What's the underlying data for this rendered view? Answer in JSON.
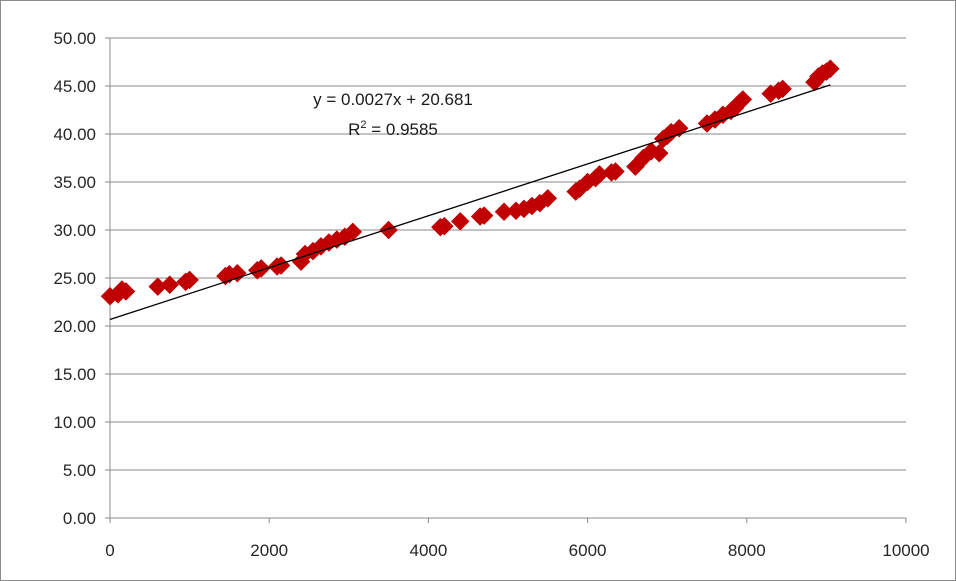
{
  "chart_data": {
    "type": "scatter",
    "title": "",
    "xlabel": "",
    "ylabel": "",
    "xlim": [
      0,
      10000
    ],
    "ylim": [
      0,
      50
    ],
    "x_ticks": [
      0,
      2000,
      4000,
      6000,
      8000,
      10000
    ],
    "x_tick_labels": [
      "0",
      "2000",
      "4000",
      "6000",
      "8000",
      "10000"
    ],
    "y_ticks": [
      0,
      5,
      10,
      15,
      20,
      25,
      30,
      35,
      40,
      45,
      50
    ],
    "y_tick_labels": [
      "0.00",
      "5.00",
      "10.00",
      "15.00",
      "20.00",
      "25.00",
      "30.00",
      "35.00",
      "40.00",
      "45.00",
      "50.00"
    ],
    "grid": "horizontal",
    "legend": "none",
    "marker": "diamond",
    "marker_color": "#c00000",
    "trendline_color": "#000000",
    "grid_color": "#888888",
    "series": [
      {
        "points": [
          [
            0,
            23.1
          ],
          [
            100,
            23.3
          ],
          [
            150,
            23.8
          ],
          [
            200,
            23.6
          ],
          [
            600,
            24.1
          ],
          [
            750,
            24.3
          ],
          [
            950,
            24.6
          ],
          [
            1000,
            24.8
          ],
          [
            1450,
            25.2
          ],
          [
            1500,
            25.4
          ],
          [
            1600,
            25.5
          ],
          [
            1850,
            25.8
          ],
          [
            1900,
            26.0
          ],
          [
            2100,
            26.2
          ],
          [
            2150,
            26.3
          ],
          [
            2400,
            26.7
          ],
          [
            2450,
            27.5
          ],
          [
            2550,
            27.8
          ],
          [
            2650,
            28.3
          ],
          [
            2750,
            28.7
          ],
          [
            2850,
            29.0
          ],
          [
            2950,
            29.3
          ],
          [
            3050,
            29.8
          ],
          [
            3500,
            30.0
          ],
          [
            4150,
            30.3
          ],
          [
            4200,
            30.4
          ],
          [
            4400,
            30.9
          ],
          [
            4650,
            31.4
          ],
          [
            4700,
            31.5
          ],
          [
            4950,
            31.9
          ],
          [
            5100,
            32.0
          ],
          [
            5200,
            32.2
          ],
          [
            5300,
            32.5
          ],
          [
            5400,
            32.8
          ],
          [
            5500,
            33.3
          ],
          [
            5850,
            34.0
          ],
          [
            5900,
            34.3
          ],
          [
            6000,
            35.0
          ],
          [
            6100,
            35.4
          ],
          [
            6150,
            35.8
          ],
          [
            6300,
            36.0
          ],
          [
            6350,
            36.1
          ],
          [
            6600,
            36.6
          ],
          [
            6700,
            37.5
          ],
          [
            6800,
            38.2
          ],
          [
            6900,
            38.0
          ],
          [
            6950,
            39.5
          ],
          [
            7000,
            39.8
          ],
          [
            7050,
            40.2
          ],
          [
            7150,
            40.6
          ],
          [
            7500,
            41.1
          ],
          [
            7600,
            41.5
          ],
          [
            7700,
            42.0
          ],
          [
            7800,
            42.4
          ],
          [
            7850,
            42.7
          ],
          [
            7900,
            43.2
          ],
          [
            7950,
            43.6
          ],
          [
            8300,
            44.2
          ],
          [
            8400,
            44.5
          ],
          [
            8450,
            44.7
          ],
          [
            8850,
            45.4
          ],
          [
            8900,
            46.0
          ],
          [
            8950,
            46.3
          ],
          [
            9000,
            46.5
          ],
          [
            9050,
            46.8
          ]
        ]
      }
    ],
    "trendline": {
      "slope": 0.0027,
      "intercept": 20.681,
      "x_range": [
        0,
        9050
      ],
      "equation": "y = 0.0027x + 20.681",
      "r2_prefix": "R",
      "r2_superscript": "2",
      "r2_value": " = 0.9585"
    }
  }
}
